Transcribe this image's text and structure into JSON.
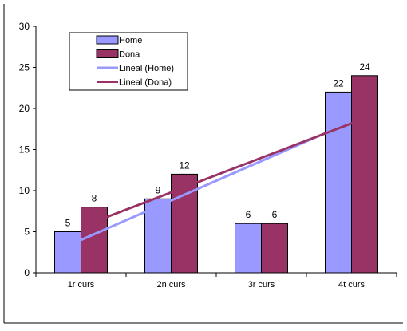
{
  "chart_data": {
    "type": "bar",
    "categories": [
      "1r curs",
      "2n curs",
      "3r curs",
      "4t curs"
    ],
    "series": [
      {
        "name": "Home",
        "values": [
          5,
          9,
          6,
          22
        ],
        "color": "#9999ff"
      },
      {
        "name": "Dona",
        "values": [
          8,
          12,
          6,
          24
        ],
        "color": "#993366"
      }
    ],
    "trendlines": [
      {
        "name": "Lineal (Home)",
        "series": "Home",
        "type": "linear",
        "color": "#9999ff"
      },
      {
        "name": "Lineal (Dona)",
        "series": "Dona",
        "type": "linear",
        "color": "#993366"
      }
    ],
    "title": "",
    "xlabel": "",
    "ylabel": "",
    "ylim": [
      0,
      30
    ],
    "yticks": [
      0,
      5,
      10,
      15,
      20,
      25,
      30
    ],
    "grid": false,
    "legend_position": "top-left",
    "data_labels": true
  }
}
